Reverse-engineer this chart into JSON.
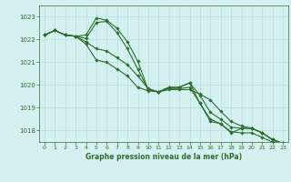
{
  "title": "Graphe pression niveau de la mer (hPa)",
  "bg_color": "#d4f0f0",
  "grid_color": "#b8dede",
  "line_color": "#2d6e2d",
  "xlim": [
    -0.5,
    23.5
  ],
  "ylim": [
    1017.5,
    1023.5
  ],
  "yticks": [
    1018,
    1019,
    1020,
    1021,
    1022,
    1023
  ],
  "xticks": [
    0,
    1,
    2,
    3,
    4,
    5,
    6,
    7,
    8,
    9,
    10,
    11,
    12,
    13,
    14,
    15,
    16,
    17,
    18,
    19,
    20,
    21,
    22,
    23
  ],
  "series": [
    [
      1022.2,
      1022.4,
      1022.2,
      1022.15,
      1022.2,
      1022.95,
      1022.85,
      1022.5,
      1021.9,
      1021.05,
      1019.8,
      1019.7,
      1019.9,
      1019.9,
      1020.1,
      1019.2,
      1018.4,
      1018.3,
      1017.9,
      1018.1,
      1018.1,
      1017.9,
      1017.6,
      1017.45
    ],
    [
      1022.2,
      1022.4,
      1022.2,
      1022.15,
      1022.05,
      1022.75,
      1022.8,
      1022.3,
      1021.6,
      1020.7,
      1019.8,
      1019.7,
      1019.9,
      1019.9,
      1020.1,
      1019.55,
      1018.8,
      1018.5,
      1018.15,
      1018.1,
      1018.1,
      1017.9,
      1017.6,
      1017.45
    ],
    [
      1022.2,
      1022.4,
      1022.2,
      1022.15,
      1021.9,
      1021.6,
      1021.5,
      1021.2,
      1020.9,
      1020.4,
      1019.85,
      1019.7,
      1019.85,
      1019.85,
      1019.9,
      1019.2,
      1018.5,
      1018.3,
      1017.95,
      1017.9,
      1017.9,
      1017.7,
      1017.5,
      1017.3
    ],
    [
      1022.2,
      1022.4,
      1022.2,
      1022.15,
      1021.8,
      1021.1,
      1021.0,
      1020.7,
      1020.4,
      1019.9,
      1019.75,
      1019.7,
      1019.8,
      1019.8,
      1019.8,
      1019.6,
      1019.35,
      1018.85,
      1018.4,
      1018.2,
      1018.1,
      1017.9,
      1017.6,
      1017.35
    ]
  ]
}
